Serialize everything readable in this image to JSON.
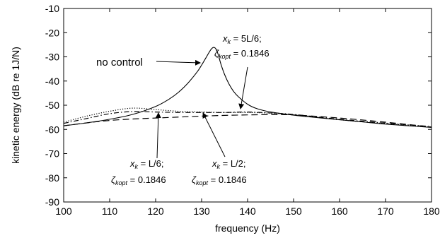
{
  "chart_data": {
    "type": "line",
    "title": "",
    "xlabel": "frequency (Hz)",
    "ylabel": "kinetic energy (dB re 1J/N)",
    "xlim": [
      100,
      180
    ],
    "ylim": [
      -90,
      -10
    ],
    "xticks": [
      100,
      110,
      120,
      130,
      140,
      150,
      160,
      170,
      180
    ],
    "yticks": [
      -10,
      -20,
      -30,
      -40,
      -50,
      -60,
      -70,
      -80,
      -90
    ],
    "grid": false,
    "legend": "none",
    "series": [
      {
        "style": "solid",
        "x": [
          100,
          105,
          110,
          115,
          120,
          123,
          125,
          127,
          129,
          130,
          131,
          131.8,
          132.3,
          132.7,
          133.1,
          133.6,
          134.2,
          135,
          136,
          137,
          138,
          140,
          142,
          145,
          150,
          155,
          160,
          165,
          170,
          175,
          180
        ],
        "y": [
          -58.5,
          -57.3,
          -55.8,
          -53.8,
          -50.5,
          -47.4,
          -44.6,
          -40.9,
          -36.3,
          -33.4,
          -30.2,
          -27.6,
          -26.4,
          -26.1,
          -26.7,
          -29.0,
          -33.0,
          -37.3,
          -41.4,
          -44.4,
          -46.5,
          -49.6,
          -51.4,
          -52.8,
          -54.1,
          -55.1,
          -56.0,
          -56.9,
          -57.8,
          -58.5,
          -59.2
        ]
      },
      {
        "style": "dotted",
        "x": [
          100,
          105,
          110,
          115,
          120,
          125,
          130,
          135,
          140,
          145,
          150,
          160,
          170,
          180
        ],
        "y": [
          -57.0,
          -54.5,
          -52.5,
          -51.2,
          -51.8,
          -52.5,
          -52.8,
          -53.0,
          -53.0,
          -53.3,
          -54.0,
          -56.0,
          -57.6,
          -59.0
        ]
      },
      {
        "style": "dashdot",
        "x": [
          100,
          105,
          110,
          115,
          120,
          125,
          130,
          135,
          140,
          145,
          150,
          160,
          170,
          180
        ],
        "y": [
          -57.5,
          -55.5,
          -53.5,
          -52.6,
          -52.8,
          -53.0,
          -53.0,
          -53.0,
          -52.8,
          -53.2,
          -53.8,
          -55.8,
          -57.4,
          -58.8
        ]
      },
      {
        "style": "dashed",
        "x": [
          100,
          105,
          110,
          115,
          120,
          125,
          130,
          135,
          140,
          145,
          150,
          160,
          170,
          180
        ],
        "y": [
          -58.5,
          -57.3,
          -56.3,
          -55.7,
          -55.3,
          -54.9,
          -54.5,
          -54.2,
          -54.0,
          -53.9,
          -54.0,
          -55.3,
          -57.0,
          -59.0
        ]
      }
    ],
    "annotations": {
      "no_control": "no control",
      "a1": {
        "x_line": {
          "var": "x",
          "sub": "k",
          "rest": " = 5L/6;"
        },
        "z_line": {
          "var": "ζ",
          "sub": "kopt",
          "rest": " = 0.1846"
        }
      },
      "a2": {
        "x_line": {
          "var": "x",
          "sub": "k",
          "rest": " = L/6;"
        },
        "z_line": {
          "var": "ζ",
          "sub": "kopt",
          "rest": " = 0.1846"
        }
      },
      "a3": {
        "x_line": {
          "var": "x",
          "sub": "k",
          "rest": " = L/2;"
        },
        "z_line": {
          "var": "ζ",
          "sub": "kopt",
          "rest": " = 0.1846"
        }
      }
    }
  }
}
